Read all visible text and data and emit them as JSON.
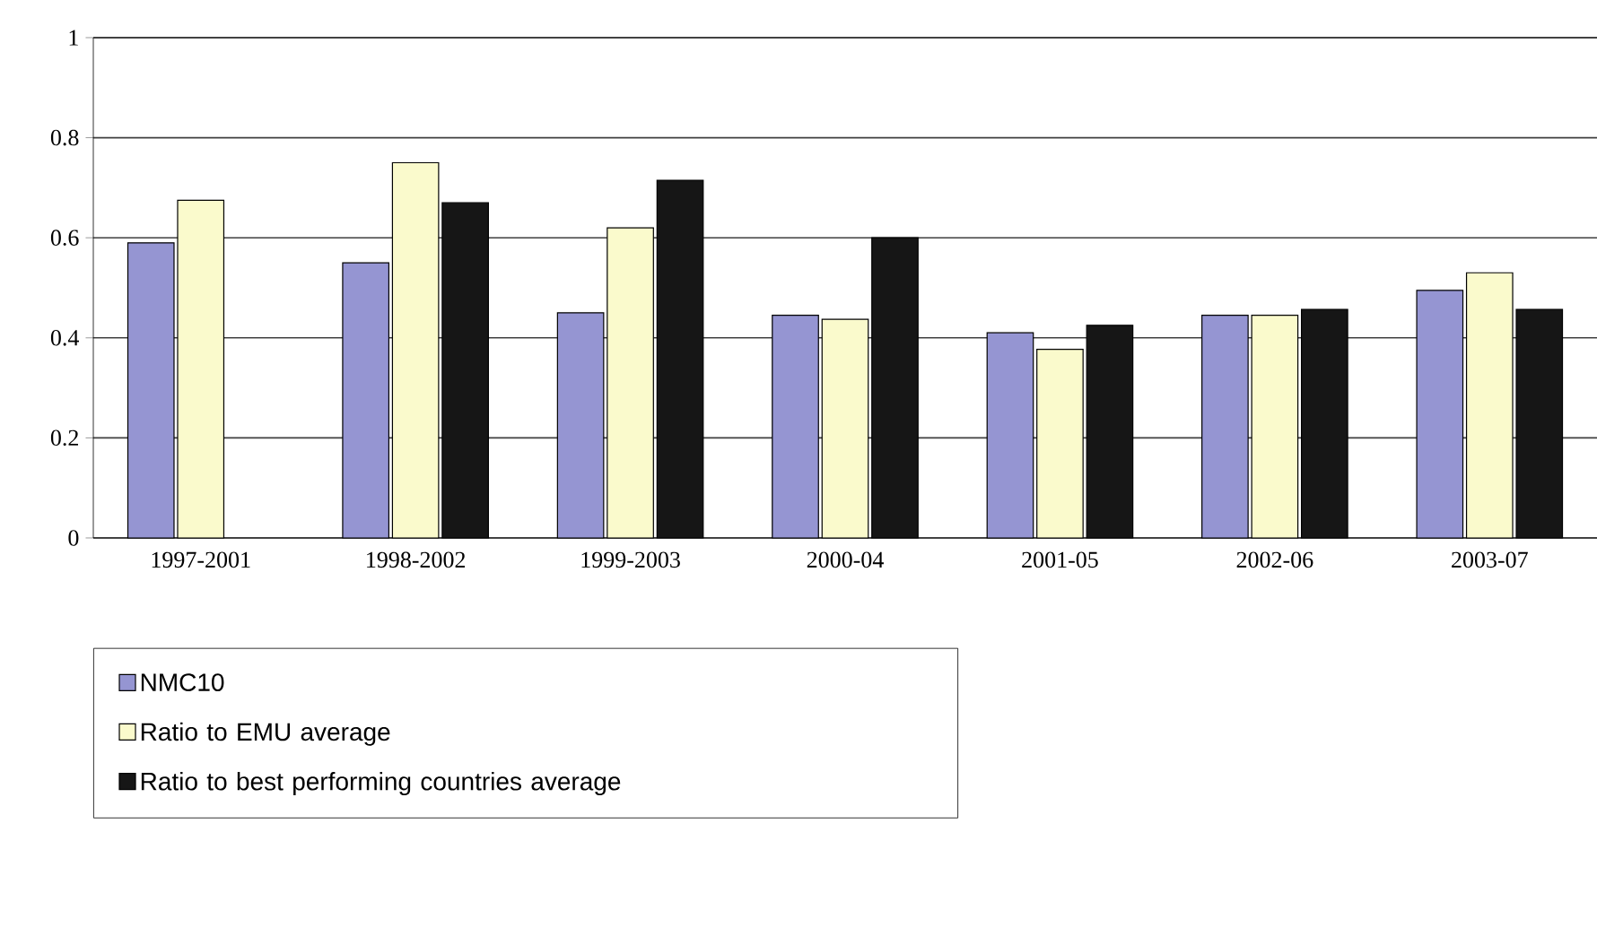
{
  "chart_data": {
    "type": "bar",
    "categories": [
      "1997-2001",
      "1998-2002",
      "1999-2003",
      "2000-04",
      "2001-05",
      "2002-06",
      "2003-07"
    ],
    "series": [
      {
        "name": "NMC10",
        "color": "#9595d2",
        "values": [
          0.59,
          0.55,
          0.45,
          0.445,
          0.41,
          0.445,
          0.495
        ]
      },
      {
        "name": "Ratio to EMU average",
        "color": "#fafacc",
        "values": [
          0.675,
          0.75,
          0.62,
          0.437,
          0.377,
          0.445,
          0.53
        ]
      },
      {
        "name": "Ratio to best performing countries average",
        "color": "#161616",
        "values": [
          null,
          0.67,
          0.715,
          0.6,
          0.425,
          0.457,
          0.457
        ]
      }
    ],
    "ylim": [
      0,
      1
    ],
    "yticks": [
      0,
      0.2,
      0.4,
      0.6,
      0.8,
      1
    ],
    "grid": "y",
    "legend": "bottom left"
  }
}
